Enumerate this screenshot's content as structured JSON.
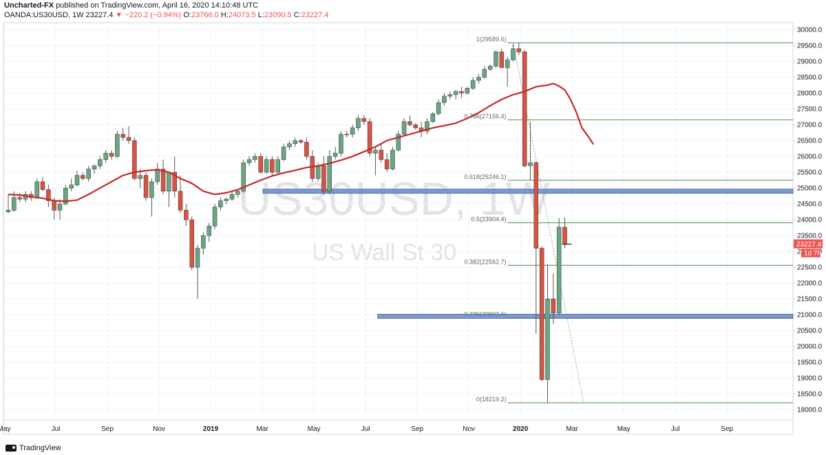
{
  "header": {
    "publisher": "Uncharted-FX",
    "published_text": "published on TradingView.com, April 16, 2020 14:10:48 UTC",
    "symbol_line": "OANDA:US30USD, 1W",
    "last": "23227.4",
    "change": "▼ −220.2 (−0.94%)",
    "o_label": "O:",
    "o_val": "23766.0",
    "h_label": "H:",
    "h_val": "24073.5",
    "l_label": "L:",
    "l_val": "23090.5",
    "c_label": "C:",
    "c_val": "23227.4"
  },
  "watermark": {
    "symbol": "US30USD, 1W",
    "name": "US Wall St 30"
  },
  "price_badge": "23227.4",
  "countdown_badge": "1d 7h",
  "footer": {
    "brand": "TradingView"
  },
  "colors": {
    "up": "#6ba583",
    "down": "#d75442",
    "ma": "#c62828",
    "fib": "#4e8a3c",
    "zone": "#6f8fcf",
    "badge": "#ef5350"
  },
  "chart_data": {
    "type": "candlestick",
    "interval": "1W",
    "ylim": [
      17700,
      30200
    ],
    "y_ticks": [
      18000,
      18500,
      19000,
      19500,
      20000,
      20500,
      21000,
      21500,
      22000,
      22500,
      23000,
      23500,
      24000,
      24500,
      25000,
      25500,
      26000,
      26500,
      27000,
      27500,
      28000,
      28500,
      29000,
      29500,
      30000
    ],
    "x_ticks": [
      "May",
      "Jul",
      "Sep",
      "Nov",
      "2019",
      "Mar",
      "May",
      "Jul",
      "Sep",
      "Nov",
      "2020",
      "Mar",
      "May",
      "Jul",
      "Sep"
    ],
    "x_tick_week_index": [
      0,
      9,
      18,
      27,
      36,
      45,
      54,
      63,
      72,
      81,
      90,
      99,
      108,
      117,
      126
    ],
    "candles": [
      [
        24250,
        24800,
        24200,
        24300
      ],
      [
        24300,
        24900,
        24250,
        24700
      ],
      [
        24700,
        24850,
        24550,
        24650
      ],
      [
        24650,
        24900,
        24550,
        24800
      ],
      [
        24800,
        24900,
        24600,
        24700
      ],
      [
        24700,
        25300,
        24650,
        25200
      ],
      [
        25200,
        25350,
        24900,
        24950
      ],
      [
        24950,
        25100,
        24400,
        24600
      ],
      [
        24600,
        24700,
        24000,
        24300
      ],
      [
        24300,
        24650,
        24000,
        24500
      ],
      [
        24500,
        25100,
        24450,
        25000
      ],
      [
        25000,
        25300,
        24900,
        25100
      ],
      [
        25100,
        25550,
        25050,
        25400
      ],
      [
        25400,
        25500,
        25250,
        25300
      ],
      [
        25300,
        25700,
        25200,
        25600
      ],
      [
        25600,
        25750,
        25450,
        25700
      ],
      [
        25700,
        26000,
        25600,
        25900
      ],
      [
        25900,
        26200,
        25800,
        26100
      ],
      [
        26100,
        26200,
        25900,
        26000
      ],
      [
        26000,
        26800,
        25950,
        26700
      ],
      [
        26700,
        26900,
        26500,
        26600
      ],
      [
        26600,
        26950,
        26400,
        26500
      ],
      [
        26500,
        26600,
        25250,
        25300
      ],
      [
        25300,
        25600,
        25000,
        25400
      ],
      [
        25400,
        25500,
        24600,
        24700
      ],
      [
        24700,
        25300,
        24100,
        25200
      ],
      [
        25200,
        25800,
        25100,
        25600
      ],
      [
        25600,
        25900,
        24800,
        24900
      ],
      [
        24900,
        25500,
        24400,
        25500
      ],
      [
        25500,
        26000,
        24700,
        24900
      ],
      [
        24900,
        25400,
        24200,
        24300
      ],
      [
        24300,
        24500,
        23800,
        24000
      ],
      [
        24000,
        24100,
        22400,
        22500
      ],
      [
        22500,
        23200,
        21500,
        23100
      ],
      [
        23100,
        23600,
        22900,
        23500
      ],
      [
        23500,
        23900,
        23300,
        23800
      ],
      [
        23800,
        24500,
        23700,
        24400
      ],
      [
        24400,
        24700,
        24300,
        24600
      ],
      [
        24600,
        24700,
        24500,
        24650
      ],
      [
        24650,
        24900,
        24600,
        24800
      ],
      [
        24800,
        24950,
        24700,
        24900
      ],
      [
        24900,
        25900,
        24850,
        25800
      ],
      [
        25800,
        26000,
        25700,
        25900
      ],
      [
        25900,
        26100,
        25800,
        26000
      ],
      [
        26000,
        26100,
        25450,
        25500
      ],
      [
        25500,
        26000,
        25450,
        25900
      ],
      [
        25900,
        26000,
        25400,
        25500
      ],
      [
        25500,
        26000,
        25450,
        25900
      ],
      [
        25900,
        26400,
        25850,
        26300
      ],
      [
        26300,
        26500,
        26200,
        26400
      ],
      [
        26400,
        26600,
        26300,
        26500
      ],
      [
        26500,
        26550,
        26400,
        26450
      ],
      [
        26450,
        26600,
        25900,
        26000
      ],
      [
        26000,
        26200,
        25200,
        25300
      ],
      [
        25300,
        25800,
        25200,
        25700
      ],
      [
        25700,
        26000,
        24800,
        24900
      ],
      [
        24900,
        26200,
        24800,
        26000
      ],
      [
        26000,
        26300,
        25900,
        26100
      ],
      [
        26100,
        26800,
        26000,
        26700
      ],
      [
        26700,
        26800,
        26600,
        26700
      ],
      [
        26700,
        27000,
        26600,
        26900
      ],
      [
        26900,
        27300,
        26800,
        27200
      ],
      [
        27200,
        27300,
        27000,
        27100
      ],
      [
        27100,
        27200,
        26000,
        26100
      ],
      [
        26100,
        26300,
        25400,
        26200
      ],
      [
        26200,
        26400,
        25800,
        25900
      ],
      [
        25900,
        26100,
        25500,
        25600
      ],
      [
        25600,
        26300,
        25550,
        26200
      ],
      [
        26200,
        26800,
        26150,
        26700
      ],
      [
        26700,
        27200,
        26650,
        27100
      ],
      [
        27100,
        27300,
        26950,
        27000
      ],
      [
        27000,
        27050,
        26850,
        26900
      ],
      [
        26900,
        27100,
        26600,
        26800
      ],
      [
        26800,
        27200,
        26700,
        27100
      ],
      [
        27100,
        27400,
        27050,
        27350
      ],
      [
        27350,
        27800,
        27300,
        27700
      ],
      [
        27700,
        28000,
        27600,
        27900
      ],
      [
        27900,
        28050,
        27800,
        27950
      ],
      [
        27950,
        28100,
        27800,
        28050
      ],
      [
        28050,
        28200,
        27850,
        28000
      ],
      [
        28000,
        28200,
        27950,
        28150
      ],
      [
        28150,
        28500,
        28100,
        28400
      ],
      [
        28400,
        28600,
        28300,
        28500
      ],
      [
        28500,
        28850,
        28450,
        28750
      ],
      [
        28750,
        28900,
        28700,
        28850
      ],
      [
        28850,
        29350,
        28800,
        29300
      ],
      [
        29300,
        29400,
        28900,
        28800
      ],
      [
        28800,
        29150,
        28200,
        29050
      ],
      [
        29050,
        29550,
        29000,
        29400
      ],
      [
        29400,
        29590,
        29200,
        29300
      ],
      [
        29300,
        29350,
        25650,
        25700
      ],
      [
        25700,
        27100,
        25250,
        25800
      ],
      [
        25800,
        25850,
        20400,
        23100
      ],
      [
        23100,
        23150,
        18900,
        18950
      ],
      [
        18950,
        22600,
        18219,
        21500
      ],
      [
        21500,
        22300,
        20700,
        21050
      ],
      [
        21050,
        24050,
        21000,
        23766
      ],
      [
        23766,
        24073,
        23090,
        23227
      ]
    ],
    "ma_weeks": [
      0,
      2,
      4,
      6,
      8,
      10,
      12,
      14,
      16,
      18,
      20,
      22,
      24,
      26,
      28,
      30,
      32,
      34,
      36,
      38,
      40,
      42,
      44,
      46,
      48,
      50,
      52,
      54,
      56,
      58,
      60,
      62,
      64,
      66,
      68,
      70,
      72,
      74,
      76,
      78,
      80,
      82,
      84,
      86,
      88,
      90,
      92,
      94,
      95,
      96,
      97,
      98,
      99,
      100,
      101,
      102
    ],
    "ma_values": [
      24800,
      24780,
      24720,
      24680,
      24600,
      24580,
      24620,
      24800,
      25000,
      25200,
      25400,
      25500,
      25550,
      25580,
      25500,
      25300,
      25150,
      24900,
      24800,
      24850,
      24950,
      25100,
      25250,
      25380,
      25480,
      25560,
      25650,
      25700,
      25780,
      25880,
      26000,
      26150,
      26300,
      26500,
      26600,
      26700,
      26800,
      26900,
      26970,
      27050,
      27200,
      27380,
      27600,
      27800,
      27950,
      28050,
      28200,
      28250,
      28300,
      28220,
      28100,
      27800,
      27400,
      26900,
      26650,
      26380
    ],
    "fib_levels": [
      {
        "label": "1(29589.6)",
        "value": 29589.6
      },
      {
        "label": "0.786(27156.4)",
        "value": 27156.4
      },
      {
        "label": "0.618(25246.1)",
        "value": 25246.1
      },
      {
        "label": "0.5(23904.4)",
        "value": 23904.4
      },
      {
        "label": "0.382(22562.7)",
        "value": 22562.7
      },
      {
        "label": "0.236(20902.6)",
        "value": 20902.6
      },
      {
        "label": "0(18219.2)",
        "value": 18219.2
      }
    ],
    "zones": [
      {
        "from_week": 45,
        "value": 24900
      },
      {
        "from_week": 65,
        "value": 20950
      }
    ],
    "trend_line": {
      "from": [
        88,
        29589.6
      ],
      "to": [
        101,
        18219.2
      ]
    }
  }
}
